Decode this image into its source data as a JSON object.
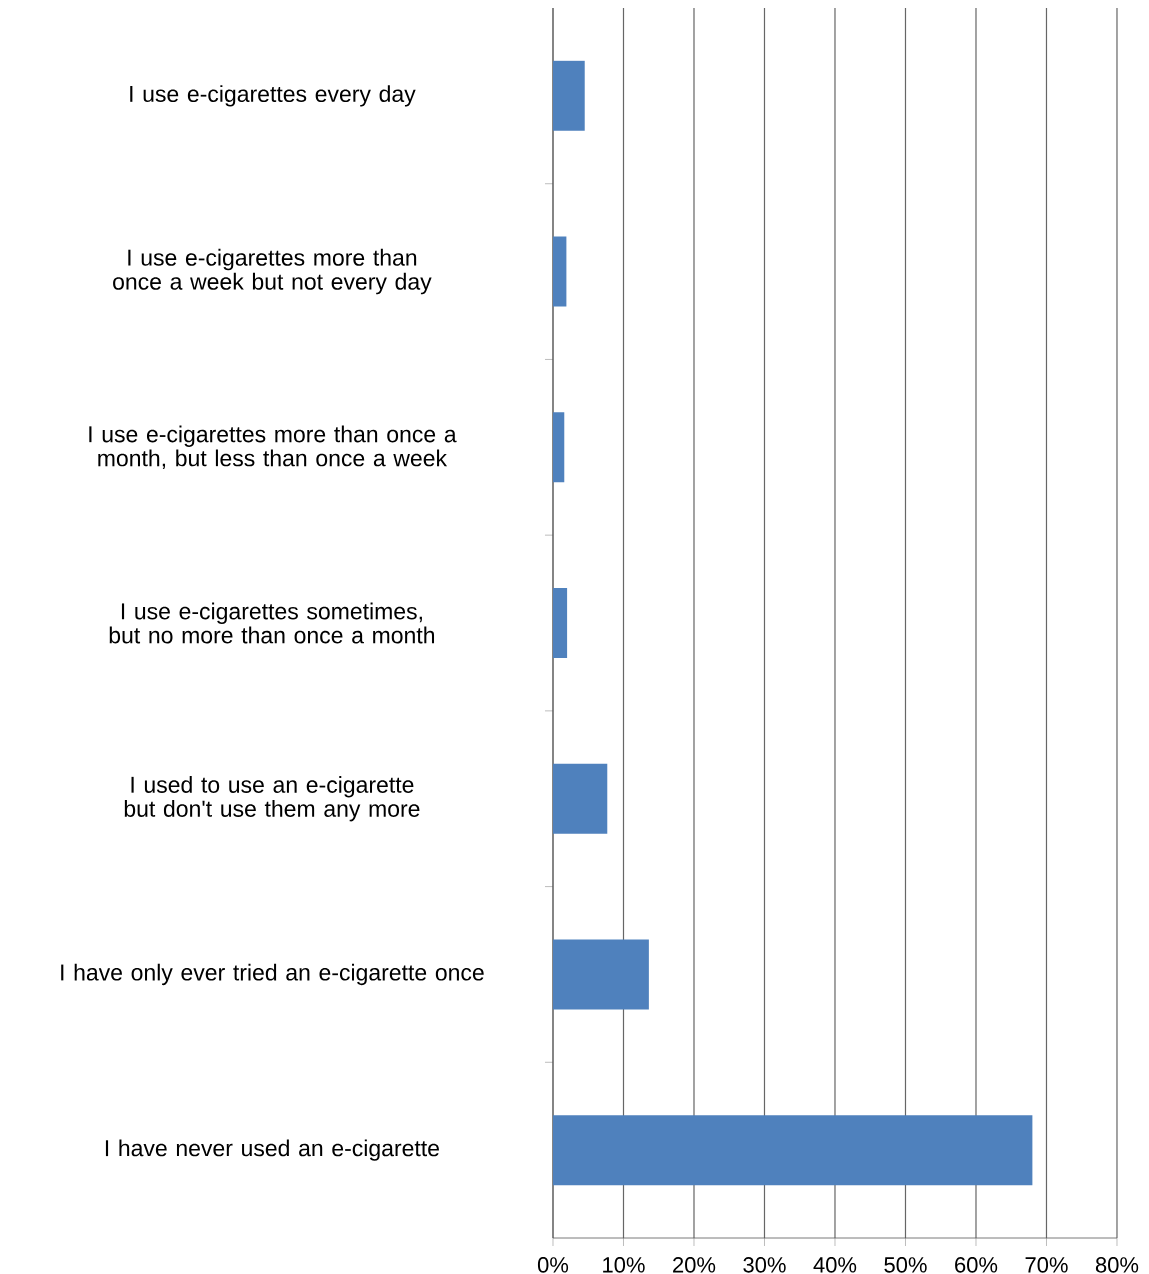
{
  "chart_data": {
    "type": "bar",
    "orientation": "horizontal",
    "categories": [
      "I use e-cigarettes every day",
      "I use e-cigarettes more than once a week but not every day",
      "I use e-cigarettes more than once a month, but less than once a week",
      "I use e-cigarettes sometimes, but no more than once a month",
      "I used to use an e-cigarette but don't use them any more",
      "I have only ever tried an e-cigarette once",
      "I have never used an e-cigarette"
    ],
    "values": [
      4.5,
      1.9,
      1.6,
      2.0,
      7.7,
      13.6,
      68.0
    ],
    "color": "#4f81bd",
    "xlim": [
      0,
      80
    ],
    "xticks": [
      {
        "value": 0,
        "label": "0%"
      },
      {
        "value": 10,
        "label": "10%"
      },
      {
        "value": 20,
        "label": "20%"
      },
      {
        "value": 30,
        "label": "30%"
      },
      {
        "value": 40,
        "label": "40%"
      },
      {
        "value": 50,
        "label": "50%"
      },
      {
        "value": 60,
        "label": "60%"
      },
      {
        "value": 70,
        "label": "70%"
      },
      {
        "value": 80,
        "label": "80%"
      }
    ],
    "grid": "x"
  }
}
